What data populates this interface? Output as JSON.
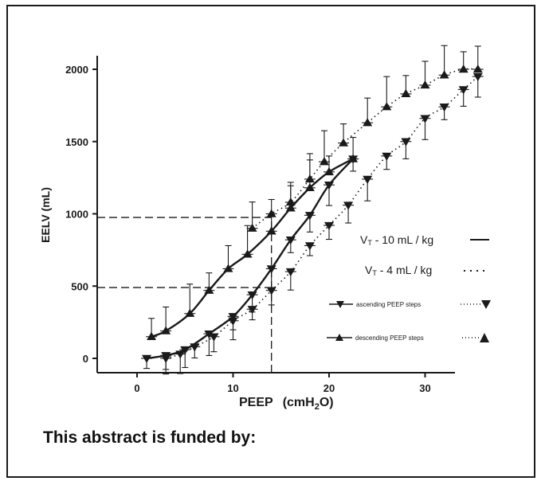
{
  "footer": {
    "funded_text": "This abstract is funded by:"
  },
  "colors": {
    "ink": "#1a1a1a",
    "background": "#ffffff"
  },
  "chart_data": {
    "type": "line",
    "xlabel": "PEEP (cmH2O)",
    "ylabel": "EELV (mL)",
    "xlim": [
      -4,
      37
    ],
    "ylim": [
      -60,
      2150
    ],
    "xticks": [
      0,
      10,
      20,
      30
    ],
    "yticks": [
      0,
      500,
      1000,
      1500,
      2000
    ],
    "grid": false,
    "legend": {
      "placement": "center-right",
      "line_entries": [
        "VT - 10 mL / kg",
        "VT - 4 mL / kg"
      ],
      "marker_entries": [
        "ascending PEEP steps",
        "descending PEEP steps"
      ]
    },
    "series": [
      {
        "name": "VT - 10 mL / kg",
        "style": "solid",
        "marker": "down",
        "errorbars": true,
        "x": [
          1,
          3,
          5,
          7.5,
          10,
          12,
          14,
          16,
          18,
          20,
          22.5
        ],
        "y": [
          0,
          20,
          60,
          170,
          290,
          440,
          620,
          820,
          990,
          1200,
          1380
        ]
      },
      {
        "name": "VT - 10 mL / kg",
        "style": "solid",
        "marker": "up",
        "errorbars": true,
        "x": [
          1.5,
          3,
          5.5,
          7.5,
          9.5,
          11.5,
          14,
          16,
          18,
          20,
          22.5
        ],
        "y": [
          150,
          190,
          310,
          470,
          620,
          720,
          880,
          1040,
          1180,
          1290,
          1380
        ]
      },
      {
        "name": "VT - 4 mL / kg",
        "style": "dotted",
        "marker": "down",
        "errorbars": true,
        "x": [
          3,
          4.5,
          6,
          8,
          10,
          12,
          14,
          16,
          18,
          20,
          22,
          24,
          26,
          28,
          30,
          32,
          34,
          35.5
        ],
        "y": [
          0,
          30,
          80,
          150,
          260,
          340,
          470,
          600,
          780,
          920,
          1060,
          1240,
          1400,
          1500,
          1660,
          1740,
          1860,
          1950
        ]
      },
      {
        "name": "VT - 4 mL / kg",
        "style": "dotted",
        "marker": "up",
        "errorbars": true,
        "x": [
          12,
          14,
          16,
          18,
          19.5,
          21.5,
          24,
          26,
          28,
          30,
          32,
          34,
          35.5
        ],
        "y": [
          900,
          1000,
          1080,
          1240,
          1360,
          1490,
          1630,
          1740,
          1830,
          1890,
          1960,
          2000,
          2000
        ]
      }
    ],
    "reference_lines": [
      {
        "type": "horizontal",
        "y": 975,
        "x_to": 14
      },
      {
        "type": "horizontal",
        "y": 490,
        "x_to": 14
      },
      {
        "type": "vertical",
        "x": 14,
        "y_to": 975
      }
    ]
  }
}
